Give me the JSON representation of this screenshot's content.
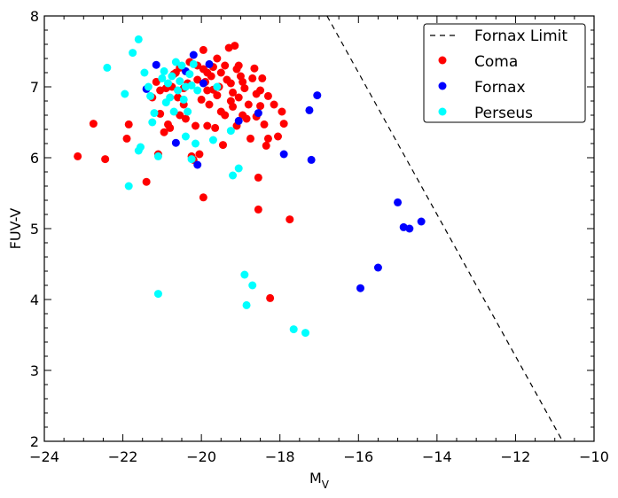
{
  "chart_data": {
    "type": "scatter",
    "xlabel_main": "M",
    "xlabel_sub": "V",
    "ylabel": "FUV-V",
    "xlim": [
      -24,
      -10
    ],
    "ylim": [
      2,
      8
    ],
    "xticks": [
      -24,
      -22,
      -20,
      -18,
      -16,
      -14,
      -12,
      -10
    ],
    "yticks": [
      2,
      3,
      4,
      5,
      6,
      7,
      8
    ],
    "xtick_labels": [
      "−24",
      "−22",
      "−20",
      "−18",
      "−16",
      "−14",
      "−12",
      "−10"
    ],
    "ytick_labels": [
      "2",
      "3",
      "4",
      "5",
      "6",
      "7",
      "8"
    ],
    "legend_position": "top-right",
    "grid": false,
    "line": {
      "name": "Fornax Limit",
      "style": "dashed",
      "color": "#000000",
      "points": [
        [
          -16.8,
          8.0
        ],
        [
          -10.8,
          2.0
        ]
      ]
    },
    "series": [
      {
        "name": "Coma",
        "color": "#ff0000",
        "points": [
          [
            -23.15,
            6.02
          ],
          [
            -22.75,
            6.48
          ],
          [
            -22.45,
            5.98
          ],
          [
            -21.9,
            6.27
          ],
          [
            -21.85,
            6.47
          ],
          [
            -21.4,
            5.66
          ],
          [
            -21.1,
            6.05
          ],
          [
            -21.25,
            6.85
          ],
          [
            -21.15,
            7.07
          ],
          [
            -21.05,
            6.62
          ],
          [
            -21.05,
            6.95
          ],
          [
            -20.95,
            6.36
          ],
          [
            -20.9,
            6.98
          ],
          [
            -20.85,
            6.47
          ],
          [
            -20.8,
            6.42
          ],
          [
            -20.75,
            7.0
          ],
          [
            -20.7,
            7.18
          ],
          [
            -20.65,
            7.2
          ],
          [
            -20.6,
            6.85
          ],
          [
            -20.55,
            7.27
          ],
          [
            -20.45,
            6.98
          ],
          [
            -20.4,
            6.55
          ],
          [
            -20.35,
            7.05
          ],
          [
            -20.3,
            7.35
          ],
          [
            -20.25,
            6.02
          ],
          [
            -20.2,
            5.97
          ],
          [
            -20.15,
            6.45
          ],
          [
            -20.1,
            7.1
          ],
          [
            -20.05,
            6.05
          ],
          [
            -20.0,
            6.82
          ],
          [
            -19.95,
            7.52
          ],
          [
            -19.95,
            5.44
          ],
          [
            -19.9,
            7.07
          ],
          [
            -19.85,
            6.45
          ],
          [
            -19.85,
            7.2
          ],
          [
            -19.8,
            6.75
          ],
          [
            -19.75,
            7.15
          ],
          [
            -19.7,
            6.96
          ],
          [
            -19.65,
            6.42
          ],
          [
            -19.6,
            7.4
          ],
          [
            -19.55,
            7.0
          ],
          [
            -19.5,
            6.65
          ],
          [
            -19.5,
            7.2
          ],
          [
            -19.45,
            6.18
          ],
          [
            -19.4,
            7.3
          ],
          [
            -19.35,
            7.1
          ],
          [
            -19.3,
            7.55
          ],
          [
            -19.25,
            7.05
          ],
          [
            -19.2,
            6.92
          ],
          [
            -19.2,
            6.72
          ],
          [
            -19.15,
            7.58
          ],
          [
            -19.1,
            6.45
          ],
          [
            -19.1,
            7.25
          ],
          [
            -19.05,
            6.85
          ],
          [
            -19.0,
            7.15
          ],
          [
            -18.95,
            7.07
          ],
          [
            -18.9,
            6.98
          ],
          [
            -18.85,
            6.55
          ],
          [
            -18.8,
            6.75
          ],
          [
            -18.75,
            6.27
          ],
          [
            -18.7,
            7.12
          ],
          [
            -18.65,
            7.26
          ],
          [
            -18.6,
            6.9
          ],
          [
            -18.55,
            5.72
          ],
          [
            -18.55,
            5.27
          ],
          [
            -18.5,
            6.95
          ],
          [
            -18.5,
            6.73
          ],
          [
            -18.45,
            7.12
          ],
          [
            -18.4,
            6.47
          ],
          [
            -18.35,
            6.17
          ],
          [
            -18.3,
            6.27
          ],
          [
            -18.3,
            6.87
          ],
          [
            -18.25,
            4.02
          ],
          [
            -18.15,
            6.75
          ],
          [
            -18.05,
            6.3
          ],
          [
            -17.95,
            6.65
          ],
          [
            -17.9,
            6.48
          ],
          [
            -17.75,
            5.13
          ],
          [
            -19.7,
            7.28
          ],
          [
            -20.55,
            6.6
          ],
          [
            -19.25,
            6.8
          ],
          [
            -19.95,
            7.25
          ],
          [
            -20.1,
            7.3
          ],
          [
            -19.6,
            6.88
          ],
          [
            -19.05,
            7.3
          ],
          [
            -18.6,
            6.58
          ],
          [
            -20.45,
            6.75
          ],
          [
            -19.85,
            6.95
          ],
          [
            -19.4,
            6.6
          ],
          [
            -18.95,
            6.6
          ]
        ]
      },
      {
        "name": "Fornax",
        "color": "#0000ff",
        "points": [
          [
            -21.15,
            7.31
          ],
          [
            -21.4,
            6.97
          ],
          [
            -20.65,
            6.21
          ],
          [
            -20.4,
            7.22
          ],
          [
            -20.2,
            7.45
          ],
          [
            -20.1,
            5.9
          ],
          [
            -19.95,
            7.05
          ],
          [
            -19.8,
            7.32
          ],
          [
            -19.05,
            6.52
          ],
          [
            -18.55,
            6.63
          ],
          [
            -17.9,
            6.05
          ],
          [
            -17.25,
            6.67
          ],
          [
            -17.2,
            5.97
          ],
          [
            -17.05,
            6.88
          ],
          [
            -15.95,
            4.16
          ],
          [
            -15.5,
            4.45
          ],
          [
            -15.0,
            5.37
          ],
          [
            -14.85,
            5.02
          ],
          [
            -14.7,
            5.0
          ],
          [
            -14.4,
            5.1
          ]
        ]
      },
      {
        "name": "Perseus",
        "color": "#00ffff",
        "points": [
          [
            -22.4,
            7.27
          ],
          [
            -21.95,
            6.9
          ],
          [
            -21.75,
            7.48
          ],
          [
            -21.6,
            7.67
          ],
          [
            -21.45,
            7.2
          ],
          [
            -21.35,
            7.0
          ],
          [
            -21.3,
            6.87
          ],
          [
            -21.25,
            6.5
          ],
          [
            -21.2,
            6.63
          ],
          [
            -21.1,
            6.02
          ],
          [
            -21.1,
            4.08
          ],
          [
            -21.0,
            7.12
          ],
          [
            -20.95,
            7.22
          ],
          [
            -20.9,
            6.78
          ],
          [
            -20.85,
            7.05
          ],
          [
            -20.8,
            6.85
          ],
          [
            -20.75,
            7.15
          ],
          [
            -20.7,
            6.65
          ],
          [
            -20.65,
            7.35
          ],
          [
            -20.6,
            6.95
          ],
          [
            -20.55,
            7.08
          ],
          [
            -20.5,
            7.3
          ],
          [
            -20.45,
            6.82
          ],
          [
            -20.4,
            7.0
          ],
          [
            -20.35,
            6.65
          ],
          [
            -20.3,
            7.18
          ],
          [
            -20.25,
            7.02
          ],
          [
            -20.2,
            7.32
          ],
          [
            -20.15,
            6.2
          ],
          [
            -20.1,
            6.95
          ],
          [
            -21.85,
            5.6
          ],
          [
            -21.6,
            6.1
          ],
          [
            -21.55,
            6.15
          ],
          [
            -19.7,
            6.25
          ],
          [
            -19.6,
            7.0
          ],
          [
            -19.25,
            6.38
          ],
          [
            -19.2,
            5.75
          ],
          [
            -19.05,
            5.85
          ],
          [
            -18.9,
            4.35
          ],
          [
            -18.85,
            3.92
          ],
          [
            -18.7,
            4.2
          ],
          [
            -17.65,
            3.58
          ],
          [
            -17.35,
            3.53
          ],
          [
            -20.4,
            6.3
          ],
          [
            -20.25,
            5.98
          ]
        ]
      }
    ]
  }
}
